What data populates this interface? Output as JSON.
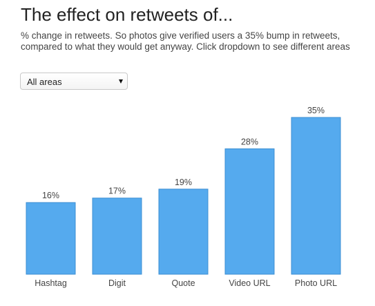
{
  "header": {
    "title": "The effect on retweets of...",
    "subtitle": "% change in retweets. So photos give verified users a 35% bump in retweets, compared to what they would get anyway. Click dropdown to see different areas"
  },
  "dropdown": {
    "selected": "All areas"
  },
  "colors": {
    "bar": "#55aaee",
    "bar_edge": "#3d8fd3",
    "label": "#444444"
  },
  "chart_data": {
    "type": "bar",
    "categories": [
      "Hashtag",
      "Digit",
      "Quote",
      "Video URL",
      "Photo URL"
    ],
    "values": [
      16,
      17,
      19,
      28,
      35
    ],
    "value_labels": [
      "16%",
      "17%",
      "19%",
      "28%",
      "35%"
    ],
    "ylim": [
      0,
      35
    ],
    "grid": false,
    "legend": "none"
  }
}
